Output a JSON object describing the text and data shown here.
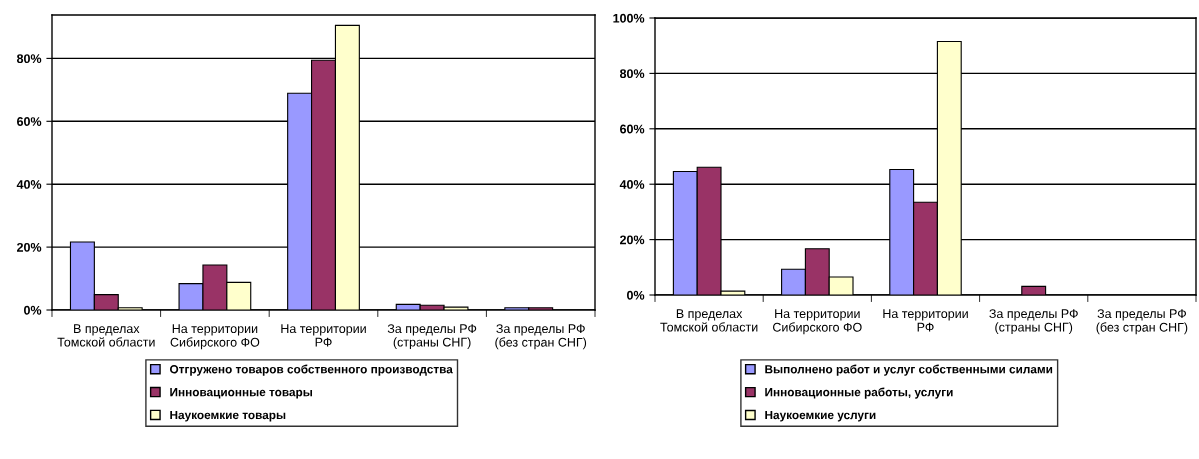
{
  "chart_data": [
    {
      "type": "bar",
      "categories": [
        "В пределах\nТомской области",
        "На территории\nСибирского ФО",
        "На территории\nРФ",
        "За пределы РФ\n(страны СНГ)",
        "За пределы РФ\n(без стран СНГ)"
      ],
      "series": [
        {
          "name": "Отгружено товаров собственного производства",
          "color": "#9999ff",
          "values": [
            21.6,
            8.4,
            68.9,
            1.8,
            0.7
          ]
        },
        {
          "name": "Инновационные товары",
          "color": "#993366",
          "values": [
            4.9,
            14.3,
            79.4,
            1.5,
            0.7
          ]
        },
        {
          "name": "Наукоемкие товары",
          "color": "#ffffcc",
          "values": [
            0.7,
            8.8,
            90.5,
            0.9,
            null
          ]
        }
      ],
      "ylim": [
        0,
        93.8
      ],
      "yticks": [
        {
          "value": 0,
          "label": "0%"
        },
        {
          "value": 20,
          "label": "20%"
        },
        {
          "value": 40,
          "label": "40%"
        },
        {
          "value": 60,
          "label": "60%"
        },
        {
          "value": 80,
          "label": "80%"
        }
      ],
      "grid": "y",
      "legend": "bottom"
    },
    {
      "type": "bar",
      "categories": [
        "В пределах\nТомской области",
        "На территории\nСибирского ФО",
        "На территории\nРФ",
        "За пределы РФ\n(страны СНГ)",
        "За пределы РФ\n(без стран СНГ)"
      ],
      "series": [
        {
          "name": "Выполнено работ и услуг собственными силами",
          "color": "#9999ff",
          "values": [
            44.6,
            9.3,
            45.3,
            null,
            null
          ]
        },
        {
          "name": "Инновационные работы, услуги",
          "color": "#993366",
          "values": [
            46.1,
            16.7,
            33.5,
            3.1,
            null
          ]
        },
        {
          "name": "Наукоемкие услуги",
          "color": "#ffffcc",
          "values": [
            1.4,
            6.5,
            91.5,
            null,
            null
          ]
        }
      ],
      "ylim": [
        0,
        100
      ],
      "yticks": [
        {
          "value": 0,
          "label": "0%"
        },
        {
          "value": 20,
          "label": "20%"
        },
        {
          "value": 40,
          "label": "40%"
        },
        {
          "value": 60,
          "label": "60%"
        },
        {
          "value": 80,
          "label": "80%"
        },
        {
          "value": 100,
          "label": "100%"
        }
      ],
      "grid": "y",
      "legend": "bottom"
    }
  ]
}
